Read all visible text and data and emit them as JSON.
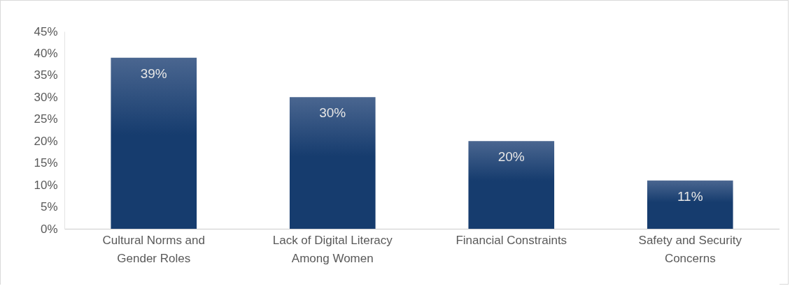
{
  "chart_data": {
    "type": "bar",
    "categories": [
      "Cultural Norms and Gender Roles",
      "Lack of Digital Literacy Among Women",
      "Financial Constraints",
      "Safety and Security Concerns"
    ],
    "values": [
      39,
      30,
      20,
      11
    ],
    "value_labels": [
      "39%",
      "30%",
      "20%",
      "11%"
    ],
    "color": "#163c6e",
    "ylim": [
      0,
      45
    ],
    "yticks": [
      {
        "value": 0,
        "label": "0%"
      },
      {
        "value": 5,
        "label": "5%"
      },
      {
        "value": 10,
        "label": "10%"
      },
      {
        "value": 15,
        "label": "15%"
      },
      {
        "value": 20,
        "label": "20%"
      },
      {
        "value": 25,
        "label": "25%"
      },
      {
        "value": 30,
        "label": "30%"
      },
      {
        "value": 35,
        "label": "35%"
      },
      {
        "value": 40,
        "label": "40%"
      },
      {
        "value": 45,
        "label": "45%"
      }
    ],
    "grid": false
  }
}
